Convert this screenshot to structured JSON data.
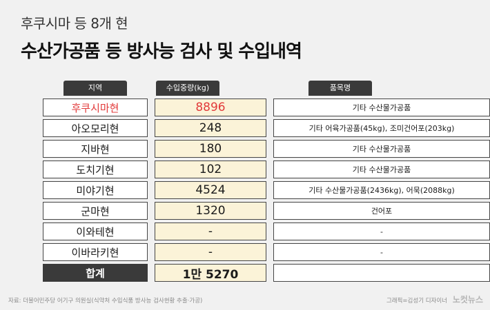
{
  "subtitle": "후쿠시마 등 8개 현",
  "title": "수산가공품 등 방사능 검사 및 수입내역",
  "headers": {
    "region": "지역",
    "weight": "수입중량(kg)",
    "items": "품목명"
  },
  "rows": [
    {
      "region": "후쿠시마현",
      "weight": "8896",
      "items": "기타 수산물가공품"
    },
    {
      "region": "아오모리현",
      "weight": "248",
      "items": "기타 어육가공품(45kg), 조미건어포(203kg)"
    },
    {
      "region": "지바현",
      "weight": "180",
      "items": "기타 수산물가공품"
    },
    {
      "region": "도치기현",
      "weight": "102",
      "items": "기타 수산물가공품"
    },
    {
      "region": "미야기현",
      "weight": "4524",
      "items": "기타 수산물가공품(2436kg), 어묵(2088kg)"
    },
    {
      "region": "군마현",
      "weight": "1320",
      "items": "건어포"
    },
    {
      "region": "이와테현",
      "weight": "-",
      "items": "-"
    },
    {
      "region": "이바라키현",
      "weight": "-",
      "items": "-"
    }
  ],
  "total": {
    "label": "합계",
    "weight": "1만 5270",
    "items": ""
  },
  "source": "자료: 더불어민주당 어기구 의원실(식약처 수입식품 방사능 검사현황 추출·가공)",
  "credit": "그래픽=김성기 디자이너",
  "logo": "노컷뉴스",
  "colors": {
    "highlight": "#e23a3a",
    "header_bg": "#3a3a3a",
    "weight_bg": "#fbf3d8"
  },
  "chart_data": {
    "type": "table",
    "title": "수산가공품 등 방사능 검사 및 수입내역",
    "subtitle": "후쿠시마 등 8개 현",
    "columns": [
      "지역",
      "수입중량(kg)",
      "품목명"
    ],
    "rows": [
      [
        "후쿠시마현",
        8896,
        "기타 수산물가공품"
      ],
      [
        "아오모리현",
        248,
        "기타 어육가공품(45kg), 조미건어포(203kg)"
      ],
      [
        "지바현",
        180,
        "기타 수산물가공품"
      ],
      [
        "도치기현",
        102,
        "기타 수산물가공품"
      ],
      [
        "미야기현",
        4524,
        "기타 수산물가공품(2436kg), 어묵(2088kg)"
      ],
      [
        "군마현",
        1320,
        "건어포"
      ],
      [
        "이와테현",
        null,
        "-"
      ],
      [
        "이바라키현",
        null,
        "-"
      ]
    ],
    "total": [
      "합계",
      15270,
      ""
    ]
  }
}
